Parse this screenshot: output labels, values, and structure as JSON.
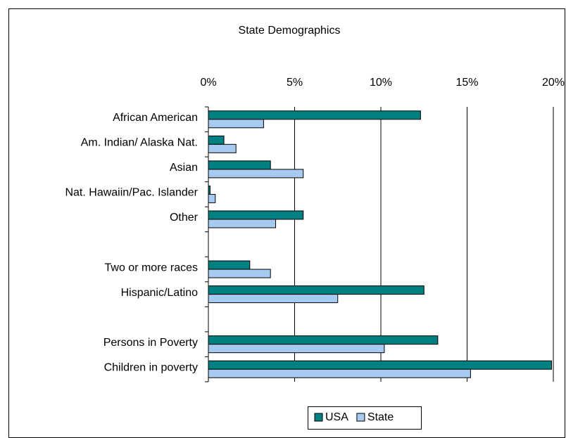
{
  "chart_data": {
    "type": "bar",
    "orientation": "horizontal",
    "title": "State Demographics",
    "categories": [
      "African American",
      "Am. Indian/ Alaska Nat.",
      "Asian",
      "Nat. Hawaiin/Pac. Islander",
      "Other",
      null,
      "Two or more races",
      "Hispanic/Latino",
      null,
      "Persons in Poverty",
      "Children in poverty"
    ],
    "series": [
      {
        "name": "USA",
        "color": "#008080",
        "values": [
          12.3,
          0.9,
          3.6,
          0.1,
          5.5,
          null,
          2.4,
          12.5,
          null,
          13.3,
          19.9
        ]
      },
      {
        "name": "State",
        "color": "#a6caf0",
        "values": [
          3.2,
          1.6,
          5.5,
          0.4,
          3.9,
          null,
          3.6,
          7.5,
          null,
          10.2,
          15.2
        ]
      }
    ],
    "xlim": [
      0,
      20
    ],
    "xticks": [
      {
        "value": 0,
        "label": "0%"
      },
      {
        "value": 5,
        "label": "5%"
      },
      {
        "value": 10,
        "label": "10%"
      },
      {
        "value": 15,
        "label": "15%"
      },
      {
        "value": 20,
        "label": "20%"
      }
    ],
    "grid": true,
    "legend": "bottom"
  }
}
